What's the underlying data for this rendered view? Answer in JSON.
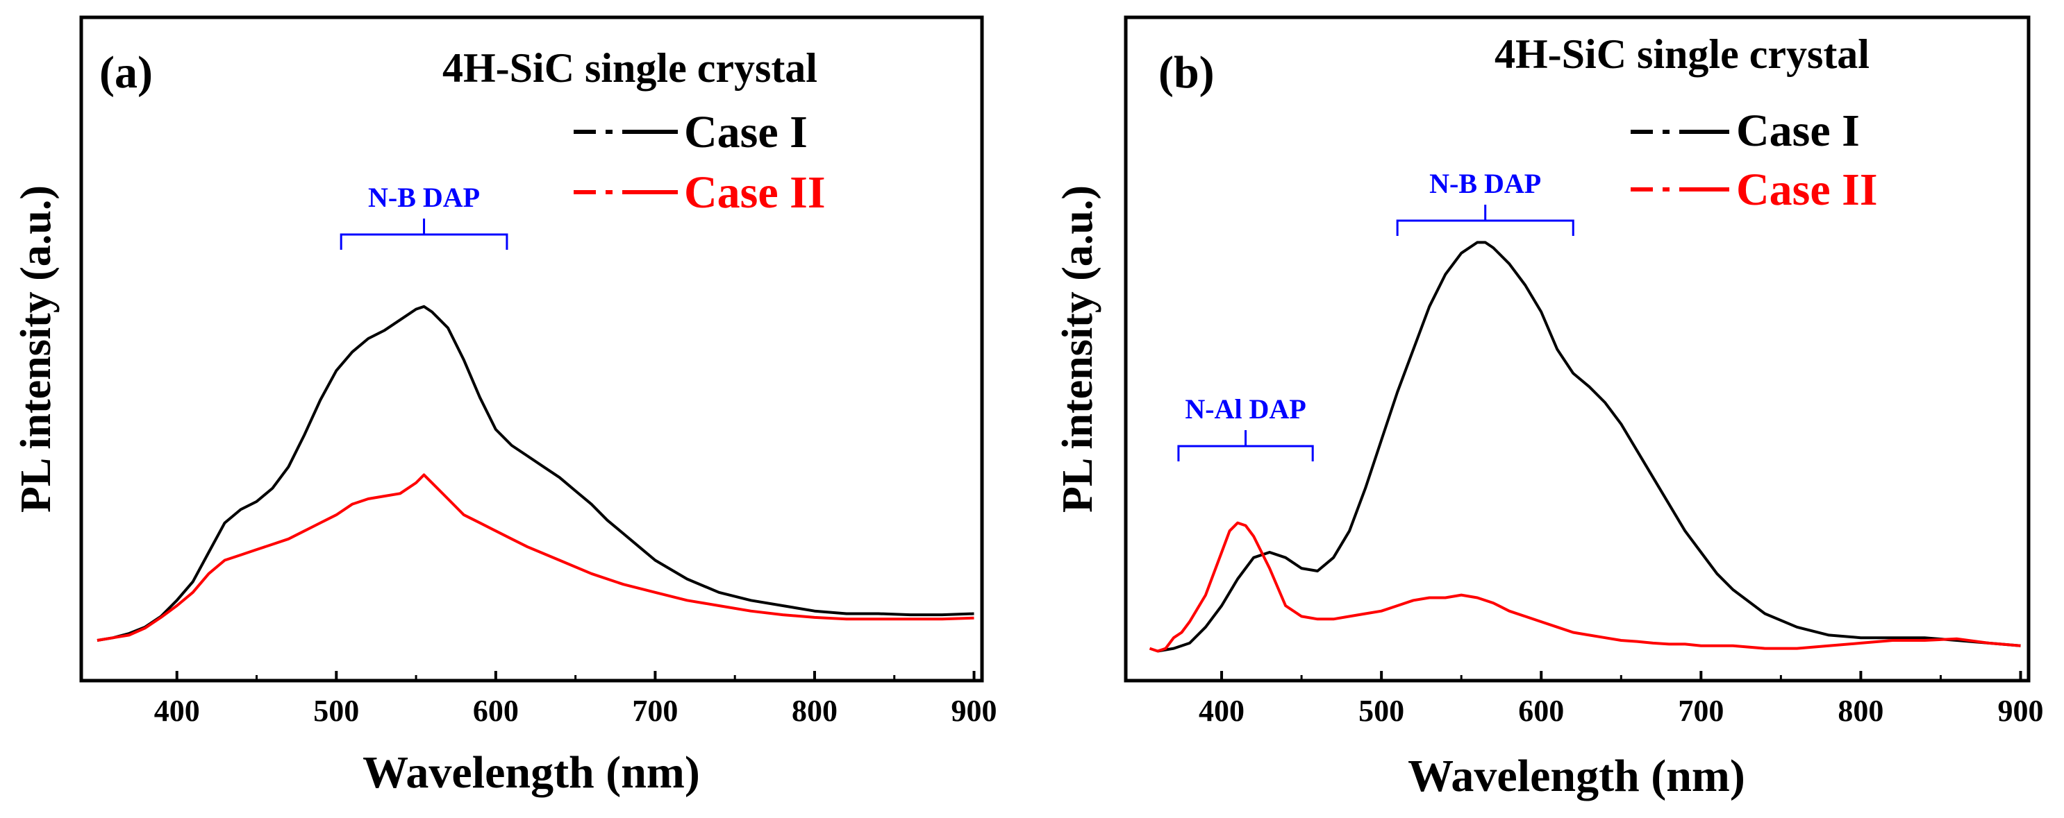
{
  "chart_data": [
    {
      "type": "line",
      "panel_label": "(a)",
      "title": "4H-SiC single crystal",
      "xlabel": "Wavelength (nm)",
      "ylabel": "PL intensity (a.u.)",
      "xlim": [
        340,
        905
      ],
      "ylim": [
        0,
        1
      ],
      "x_ticks": [
        400,
        500,
        600,
        700,
        800,
        900
      ],
      "x_tick_labels": [
        "400",
        "500",
        "600",
        "700",
        "800",
        "900"
      ],
      "y_tick_labels": [],
      "grid": false,
      "legend_position": "top-right",
      "series": [
        {
          "name": "Case I",
          "color": "#000000",
          "x": [
            350,
            360,
            370,
            380,
            390,
            400,
            410,
            420,
            430,
            440,
            450,
            460,
            470,
            480,
            490,
            500,
            510,
            520,
            530,
            540,
            550,
            555,
            560,
            570,
            580,
            590,
            600,
            610,
            620,
            630,
            640,
            650,
            660,
            670,
            680,
            690,
            700,
            720,
            740,
            760,
            780,
            800,
            820,
            840,
            860,
            880,
            900
          ],
          "values": [
            0.035,
            0.04,
            0.048,
            0.06,
            0.08,
            0.11,
            0.145,
            0.2,
            0.255,
            0.28,
            0.295,
            0.32,
            0.36,
            0.42,
            0.485,
            0.54,
            0.575,
            0.6,
            0.615,
            0.635,
            0.655,
            0.66,
            0.65,
            0.62,
            0.56,
            0.49,
            0.43,
            0.4,
            0.38,
            0.36,
            0.34,
            0.315,
            0.29,
            0.26,
            0.235,
            0.21,
            0.185,
            0.15,
            0.125,
            0.11,
            0.1,
            0.09,
            0.085,
            0.085,
            0.083,
            0.083,
            0.085
          ]
        },
        {
          "name": "Case II",
          "color": "#ff0000",
          "x": [
            350,
            360,
            370,
            380,
            390,
            400,
            410,
            420,
            430,
            440,
            450,
            460,
            470,
            480,
            490,
            500,
            510,
            520,
            530,
            540,
            550,
            555,
            560,
            570,
            580,
            590,
            600,
            610,
            620,
            640,
            660,
            680,
            700,
            720,
            740,
            760,
            780,
            800,
            820,
            840,
            860,
            880,
            900
          ],
          "values": [
            0.035,
            0.04,
            0.045,
            0.058,
            0.078,
            0.1,
            0.125,
            0.16,
            0.185,
            0.195,
            0.205,
            0.215,
            0.225,
            0.24,
            0.255,
            0.27,
            0.29,
            0.3,
            0.305,
            0.31,
            0.33,
            0.345,
            0.33,
            0.3,
            0.27,
            0.255,
            0.24,
            0.225,
            0.21,
            0.185,
            0.16,
            0.14,
            0.125,
            0.11,
            0.1,
            0.09,
            0.083,
            0.078,
            0.075,
            0.075,
            0.075,
            0.075,
            0.077
          ]
        }
      ],
      "annotations": [
        {
          "text": "N-B DAP",
          "x_range": [
            503,
            607
          ],
          "color": "#0000ff"
        }
      ]
    },
    {
      "type": "line",
      "panel_label": "(b)",
      "title": "4H-SiC single crystal",
      "xlabel": "Wavelength (nm)",
      "ylabel": "PL intensity (a.u.)",
      "xlim": [
        340,
        905
      ],
      "ylim": [
        0,
        1
      ],
      "x_ticks": [
        400,
        500,
        600,
        700,
        800,
        900
      ],
      "x_tick_labels": [
        "400",
        "500",
        "600",
        "700",
        "800",
        "900"
      ],
      "y_tick_labels": [],
      "grid": false,
      "legend_position": "top-right",
      "series": [
        {
          "name": "Case I",
          "color": "#000000",
          "x": [
            360,
            370,
            380,
            390,
            400,
            410,
            420,
            430,
            440,
            450,
            460,
            470,
            480,
            490,
            500,
            510,
            520,
            530,
            540,
            550,
            560,
            565,
            570,
            580,
            590,
            600,
            610,
            620,
            630,
            640,
            650,
            660,
            670,
            680,
            690,
            700,
            710,
            720,
            740,
            760,
            780,
            800,
            820,
            840,
            860,
            880,
            900
          ],
          "values": [
            0.015,
            0.02,
            0.03,
            0.06,
            0.1,
            0.15,
            0.19,
            0.2,
            0.19,
            0.17,
            0.165,
            0.19,
            0.24,
            0.32,
            0.41,
            0.5,
            0.58,
            0.66,
            0.72,
            0.76,
            0.78,
            0.78,
            0.77,
            0.74,
            0.7,
            0.65,
            0.58,
            0.535,
            0.51,
            0.48,
            0.44,
            0.39,
            0.34,
            0.29,
            0.24,
            0.2,
            0.16,
            0.13,
            0.085,
            0.06,
            0.045,
            0.04,
            0.04,
            0.04,
            0.035,
            0.03,
            0.025
          ]
        },
        {
          "name": "Case II",
          "color": "#ff0000",
          "x": [
            355,
            360,
            365,
            370,
            375,
            380,
            390,
            400,
            405,
            410,
            415,
            420,
            430,
            440,
            450,
            460,
            470,
            480,
            490,
            500,
            510,
            520,
            530,
            540,
            550,
            560,
            570,
            580,
            590,
            600,
            610,
            620,
            630,
            640,
            650,
            660,
            670,
            680,
            690,
            700,
            720,
            740,
            760,
            780,
            800,
            820,
            840,
            860,
            880,
            900
          ],
          "values": [
            0.02,
            0.015,
            0.02,
            0.04,
            0.05,
            0.07,
            0.12,
            0.2,
            0.24,
            0.255,
            0.25,
            0.23,
            0.17,
            0.1,
            0.08,
            0.075,
            0.075,
            0.08,
            0.085,
            0.09,
            0.1,
            0.11,
            0.115,
            0.115,
            0.12,
            0.115,
            0.105,
            0.09,
            0.08,
            0.07,
            0.06,
            0.05,
            0.045,
            0.04,
            0.035,
            0.033,
            0.03,
            0.028,
            0.028,
            0.025,
            0.025,
            0.02,
            0.02,
            0.025,
            0.03,
            0.035,
            0.035,
            0.038,
            0.03,
            0.025
          ]
        }
      ],
      "annotations": [
        {
          "text": "N-Al DAP",
          "x_range": [
            373,
            457
          ],
          "color": "#0000ff"
        },
        {
          "text": "N-B DAP",
          "x_range": [
            510,
            620
          ],
          "color": "#0000ff"
        }
      ]
    }
  ]
}
